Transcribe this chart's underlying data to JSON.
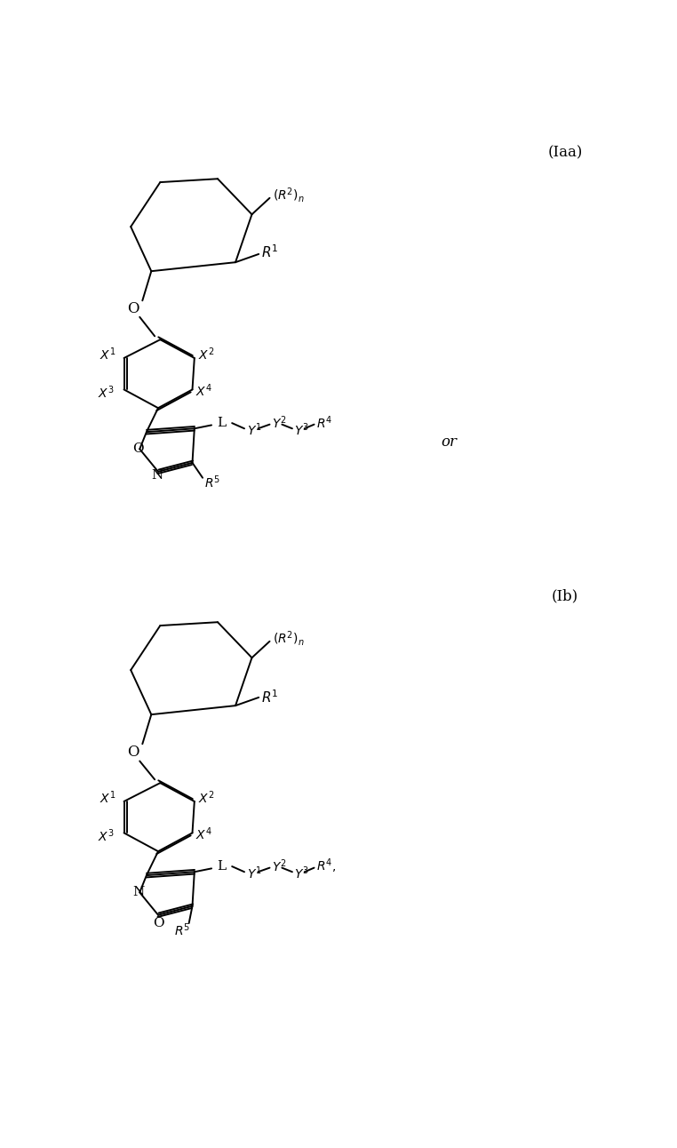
{
  "fig_width": 7.62,
  "fig_height": 12.92,
  "bg_color": "#ffffff",
  "line_color": "#000000",
  "text_color": "#000000",
  "label_Iaa": "(Iaa)",
  "label_Ib": "(Ib)",
  "label_or": "or",
  "lw": 1.4,
  "fs": 11,
  "fs_sup": 8
}
